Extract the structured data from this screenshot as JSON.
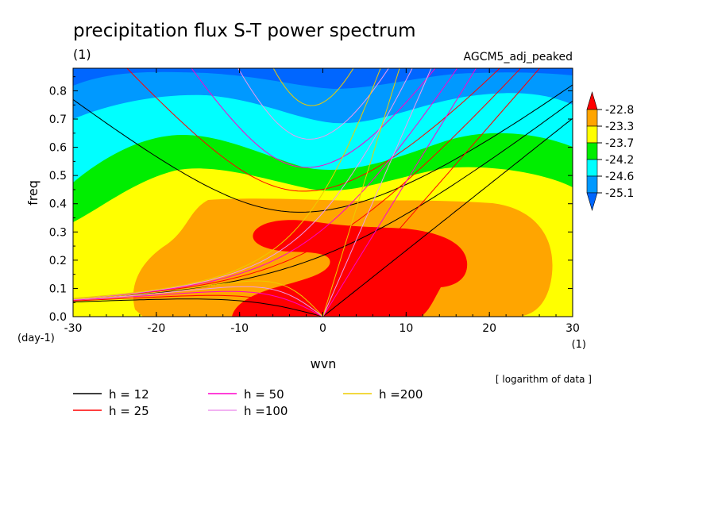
{
  "chart_data": {
    "type": "heatmap",
    "title": "precipitation flux S-T power spectrum",
    "subtitle": "(1)",
    "model_label": "AGCM5_adj_peaked",
    "xlabel": "wvn",
    "ylabel": "freq",
    "x_unit": "(1)",
    "y_unit": "(day-1)",
    "xlim": [
      -30,
      30
    ],
    "ylim": [
      0,
      0.88
    ],
    "x_ticks": [
      -30,
      -20,
      -10,
      0,
      10,
      20,
      30
    ],
    "x_tick_labels": [
      "-30",
      "-20",
      "-10",
      "0",
      "10",
      "20",
      "30"
    ],
    "y_ticks": [
      0,
      0.1,
      0.2,
      0.3,
      0.4,
      0.5,
      0.6,
      0.7,
      0.8
    ],
    "y_tick_labels": [
      "0.0",
      "0.1",
      "0.2",
      "0.3",
      "0.4",
      "0.5",
      "0.6",
      "0.7",
      "0.8"
    ],
    "note": "[ logarithm of data ]",
    "colorbar": {
      "levels": [
        "-22.8",
        "-23.3",
        "-23.7",
        "-24.2",
        "-24.6",
        "-25.1"
      ],
      "colors": [
        "#ff0000",
        "#ffa500",
        "#ffff00",
        "#00ee00",
        "#00ffff",
        "#0099ff",
        "#0066ff"
      ]
    },
    "dispersion_curves": [
      {
        "label": "h = 12",
        "color": "#000000",
        "equivalent_depth": 12
      },
      {
        "label": "h = 25",
        "color": "#ff0000",
        "equivalent_depth": 25
      },
      {
        "label": "h = 50",
        "color": "#ff00cc",
        "equivalent_depth": 50
      },
      {
        "label": "h =100",
        "color": "#ee99ee",
        "equivalent_depth": 100
      },
      {
        "label": "h =200",
        "color": "#eecc00",
        "equivalent_depth": 200
      }
    ]
  }
}
